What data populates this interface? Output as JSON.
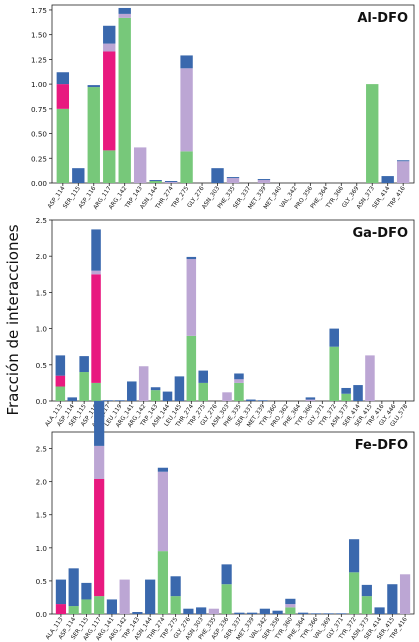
{
  "figure": {
    "ylabel": "Fracción de interacciones"
  },
  "colors": {
    "green": "#77c87a",
    "blue": "#3a68ad",
    "magenta": "#e8197f",
    "purple": "#bca6d4"
  },
  "chart_data": [
    {
      "type": "bar",
      "title": "Al-DFO",
      "ylim": [
        0,
        1.8
      ],
      "yticks": [
        0,
        0.25,
        0.5,
        0.75,
        1.0,
        1.25,
        1.5,
        1.75
      ],
      "ytick_labels": [
        "0.00",
        "0.25",
        "0.50",
        "0.75",
        "1.00",
        "1.25",
        "1.50",
        "1.75"
      ],
      "categories": [
        "ASP_114",
        "SER_115",
        "ASP_116",
        "ARG_117",
        "ARG_142",
        "TRP_143",
        "ASN_144",
        "THR_274",
        "TRP_275",
        "GLY_276",
        "ASN_303",
        "PHE_335",
        "SER_337",
        "MET_339",
        "MET_340",
        "VAL_342",
        "PRO_356",
        "PHE_364",
        "TYR_366",
        "GLY_369",
        "ASN_373",
        "SER_414",
        "TRP_416"
      ],
      "series": [
        {
          "color": "green",
          "values": [
            0.75,
            0,
            0.97,
            0.33,
            1.67,
            0,
            0.02,
            0,
            0.32,
            0,
            0,
            0,
            0,
            0,
            0,
            0,
            0,
            0,
            0,
            0,
            1.0,
            0,
            0
          ]
        },
        {
          "color": "magenta",
          "values": [
            0.25,
            0,
            0,
            1.0,
            0,
            0,
            0,
            0,
            0,
            0,
            0,
            0,
            0,
            0,
            0,
            0,
            0,
            0,
            0,
            0,
            0,
            0,
            0
          ]
        },
        {
          "color": "purple",
          "values": [
            0,
            0,
            0,
            0.08,
            0.04,
            0.36,
            0,
            0.01,
            0.84,
            0,
            0,
            0.05,
            0,
            0.03,
            0,
            0,
            0,
            0,
            0,
            0,
            0,
            0,
            0.22
          ]
        },
        {
          "color": "blue",
          "values": [
            0.12,
            0.15,
            0.02,
            0.18,
            0.06,
            0,
            0.01,
            0.01,
            0.13,
            0,
            0.15,
            0.01,
            0,
            0.01,
            0,
            0,
            0,
            0,
            0,
            0,
            0,
            0.07,
            0.01
          ]
        }
      ]
    },
    {
      "type": "bar",
      "title": "Ga-DFO",
      "ylim": [
        0,
        2.5
      ],
      "yticks": [
        0,
        0.5,
        1.0,
        1.5,
        2.0,
        2.5
      ],
      "ytick_labels": [
        "0.0",
        "0.5",
        "1.0",
        "1.5",
        "2.0",
        "2.5"
      ],
      "categories": [
        "ALA_113",
        "ASP_114",
        "SER_115",
        "ASP_116",
        "ARG_117",
        "LEU_119",
        "ARG_141",
        "ARG_142",
        "TRP_143",
        "ASN_144",
        "LEU_145",
        "THR_274",
        "TRP_275",
        "GLY_276",
        "ASN_303",
        "PHE_335",
        "SER_337",
        "MET_339",
        "TYR_360",
        "PRO_362",
        "PHE_364",
        "TYR_366",
        "GLY_371",
        "TYR_372",
        "ASN_373",
        "SER_414",
        "SER_415",
        "TRP_416",
        "GLY_446",
        "GLU_578"
      ],
      "series": [
        {
          "color": "green",
          "values": [
            0.2,
            0,
            0.4,
            0.25,
            0,
            0,
            0,
            0,
            0.15,
            0,
            0,
            0.9,
            0.25,
            0,
            0,
            0.25,
            0,
            0,
            0,
            0,
            0,
            0,
            0,
            0.75,
            0.1,
            0,
            0,
            0,
            0,
            0
          ]
        },
        {
          "color": "magenta",
          "values": [
            0.15,
            0,
            0,
            1.5,
            0,
            0,
            0,
            0,
            0,
            0,
            0,
            0,
            0,
            0,
            0,
            0,
            0,
            0,
            0,
            0,
            0,
            0,
            0,
            0,
            0,
            0,
            0,
            0,
            0,
            0
          ]
        },
        {
          "color": "purple",
          "values": [
            0,
            0,
            0,
            0.05,
            0,
            0,
            0,
            0.48,
            0,
            0,
            0,
            1.06,
            0,
            0,
            0.12,
            0.05,
            0,
            0,
            0,
            0,
            0,
            0.02,
            0,
            0,
            0,
            0,
            0.63,
            0,
            0,
            0
          ]
        },
        {
          "color": "blue",
          "values": [
            0.28,
            0.05,
            0.22,
            0.57,
            0.01,
            0.01,
            0.27,
            0,
            0.04,
            0.13,
            0.34,
            0.03,
            0.17,
            0,
            0,
            0.08,
            0.02,
            0.01,
            0,
            0,
            0,
            0.03,
            0,
            0.25,
            0.08,
            0.22,
            0,
            0,
            0,
            0
          ]
        }
      ]
    },
    {
      "type": "bar",
      "title": "Fe-DFO",
      "ylim": [
        0,
        2.75
      ],
      "yticks": [
        0,
        0.5,
        1.0,
        1.5,
        2.0,
        2.5
      ],
      "ytick_labels": [
        "0.0",
        "0.5",
        "1.0",
        "1.5",
        "2.0",
        "2.5"
      ],
      "categories": [
        "ALA_113",
        "ASP_114",
        "SER_115",
        "ARG_117",
        "ARG_141",
        "ARG_142",
        "TRP_143",
        "ASN_144",
        "THR_274",
        "TRP_275",
        "GLY_276",
        "ASN_303",
        "PHE_335",
        "ASP_336",
        "SER_337",
        "MET_339",
        "VAL_342",
        "SER_358",
        "TYR_360",
        "PHE_364",
        "TYR_366",
        "VAL_369",
        "GLY_371",
        "TYR_372",
        "ASN_373",
        "SER_414",
        "SER_415",
        "TRP_416"
      ],
      "series": [
        {
          "color": "green",
          "values": [
            0,
            0.12,
            0.22,
            0.27,
            0,
            0,
            0,
            0,
            0.95,
            0.27,
            0,
            0,
            0,
            0.45,
            0,
            0,
            0,
            0,
            0.1,
            0,
            0,
            0,
            0,
            0.63,
            0.27,
            0,
            0,
            0
          ]
        },
        {
          "color": "magenta",
          "values": [
            0.15,
            0,
            0,
            1.77,
            0,
            0,
            0,
            0,
            0,
            0,
            0,
            0,
            0,
            0,
            0,
            0,
            0,
            0,
            0,
            0,
            0,
            0,
            0,
            0,
            0,
            0,
            0,
            0
          ]
        },
        {
          "color": "purple",
          "values": [
            0,
            0,
            0,
            0.5,
            0,
            0.52,
            0,
            0,
            1.2,
            0,
            0,
            0,
            0.08,
            0,
            0,
            0,
            0,
            0,
            0.05,
            0,
            0,
            0,
            0,
            0,
            0,
            0,
            0,
            0.6
          ]
        },
        {
          "color": "blue",
          "values": [
            0.37,
            0.57,
            0.25,
            0.68,
            0.22,
            0,
            0.03,
            0.52,
            0.06,
            0.3,
            0.08,
            0.1,
            0,
            0.3,
            0.02,
            0.02,
            0.08,
            0.05,
            0.08,
            0.02,
            0.01,
            0.01,
            0.01,
            0.5,
            0.17,
            0.1,
            0.45,
            0
          ]
        }
      ]
    }
  ]
}
